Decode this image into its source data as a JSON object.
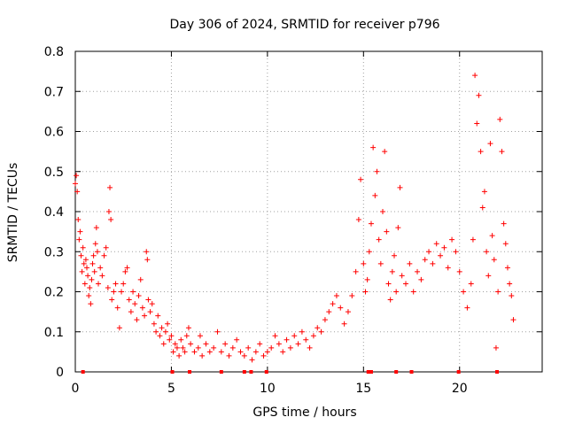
{
  "chart_data": {
    "type": "scatter",
    "title": "Day 306 of 2024, SRMTID for receiver p796",
    "xlabel": "GPS time / hours",
    "ylabel": "SRMTID / TECUs",
    "xlim": [
      0,
      24.3
    ],
    "ylim": [
      0,
      0.8
    ],
    "xticks": [
      "0",
      "5",
      "10",
      "15",
      "20"
    ],
    "xtick_values": [
      0,
      5,
      10,
      15,
      20
    ],
    "yticks": [
      "0",
      "0.1",
      "0.2",
      "0.3",
      "0.4",
      "0.5",
      "0.6",
      "0.7",
      "0.8"
    ],
    "ytick_values": [
      0,
      0.1,
      0.2,
      0.3,
      0.4,
      0.5,
      0.6,
      0.7,
      0.8
    ],
    "grid": true,
    "marker": "+",
    "color": "#ff0000",
    "series": [
      {
        "name": "SRMTID",
        "points": [
          [
            0.0,
            0.47
          ],
          [
            0.05,
            0.49
          ],
          [
            0.1,
            0.45
          ],
          [
            0.15,
            0.38
          ],
          [
            0.2,
            0.33
          ],
          [
            0.25,
            0.35
          ],
          [
            0.3,
            0.29
          ],
          [
            0.35,
            0.25
          ],
          [
            0.4,
            0.31
          ],
          [
            0.45,
            0.27
          ],
          [
            0.5,
            0.22
          ],
          [
            0.55,
            0.28
          ],
          [
            0.6,
            0.26
          ],
          [
            0.65,
            0.24
          ],
          [
            0.7,
            0.19
          ],
          [
            0.75,
            0.21
          ],
          [
            0.8,
            0.17
          ],
          [
            0.85,
            0.23
          ],
          [
            0.9,
            0.27
          ],
          [
            0.95,
            0.29
          ],
          [
            1.0,
            0.25
          ],
          [
            1.05,
            0.32
          ],
          [
            1.1,
            0.36
          ],
          [
            1.15,
            0.3
          ],
          [
            1.2,
            0.22
          ],
          [
            1.3,
            0.26
          ],
          [
            1.4,
            0.24
          ],
          [
            1.5,
            0.29
          ],
          [
            1.6,
            0.31
          ],
          [
            1.7,
            0.21
          ],
          [
            1.75,
            0.4
          ],
          [
            1.8,
            0.46
          ],
          [
            1.85,
            0.38
          ],
          [
            1.9,
            0.18
          ],
          [
            2.0,
            0.2
          ],
          [
            2.1,
            0.22
          ],
          [
            2.2,
            0.16
          ],
          [
            2.3,
            0.11
          ],
          [
            2.4,
            0.2
          ],
          [
            2.5,
            0.22
          ],
          [
            2.6,
            0.25
          ],
          [
            2.7,
            0.26
          ],
          [
            2.8,
            0.18
          ],
          [
            2.9,
            0.15
          ],
          [
            3.0,
            0.2
          ],
          [
            3.1,
            0.17
          ],
          [
            3.2,
            0.13
          ],
          [
            3.3,
            0.19
          ],
          [
            3.4,
            0.23
          ],
          [
            3.5,
            0.16
          ],
          [
            3.6,
            0.14
          ],
          [
            3.7,
            0.3
          ],
          [
            3.75,
            0.28
          ],
          [
            3.8,
            0.18
          ],
          [
            3.9,
            0.15
          ],
          [
            4.0,
            0.17
          ],
          [
            4.1,
            0.12
          ],
          [
            4.2,
            0.1
          ],
          [
            4.3,
            0.14
          ],
          [
            4.4,
            0.09
          ],
          [
            4.5,
            0.11
          ],
          [
            4.6,
            0.07
          ],
          [
            4.7,
            0.1
          ],
          [
            4.8,
            0.12
          ],
          [
            4.9,
            0.08
          ],
          [
            5.0,
            0.09
          ],
          [
            5.1,
            0.05
          ],
          [
            5.2,
            0.07
          ],
          [
            5.3,
            0.06
          ],
          [
            5.4,
            0.04
          ],
          [
            5.5,
            0.08
          ],
          [
            5.6,
            0.06
          ],
          [
            5.7,
            0.05
          ],
          [
            5.8,
            0.09
          ],
          [
            5.9,
            0.11
          ],
          [
            6.0,
            0.07
          ],
          [
            6.2,
            0.05
          ],
          [
            6.4,
            0.06
          ],
          [
            6.5,
            0.09
          ],
          [
            6.6,
            0.04
          ],
          [
            6.8,
            0.07
          ],
          [
            7.0,
            0.05
          ],
          [
            7.2,
            0.06
          ],
          [
            7.4,
            0.1
          ],
          [
            7.6,
            0.05
          ],
          [
            7.8,
            0.07
          ],
          [
            8.0,
            0.04
          ],
          [
            8.2,
            0.06
          ],
          [
            8.4,
            0.08
          ],
          [
            8.6,
            0.05
          ],
          [
            8.8,
            0.04
          ],
          [
            9.0,
            0.06
          ],
          [
            9.2,
            0.03
          ],
          [
            9.4,
            0.05
          ],
          [
            9.6,
            0.07
          ],
          [
            9.8,
            0.04
          ],
          [
            10.0,
            0.05
          ],
          [
            10.2,
            0.06
          ],
          [
            10.4,
            0.09
          ],
          [
            10.6,
            0.07
          ],
          [
            10.8,
            0.05
          ],
          [
            11.0,
            0.08
          ],
          [
            11.2,
            0.06
          ],
          [
            11.4,
            0.09
          ],
          [
            11.6,
            0.07
          ],
          [
            11.8,
            0.1
          ],
          [
            12.0,
            0.08
          ],
          [
            12.2,
            0.06
          ],
          [
            12.4,
            0.09
          ],
          [
            12.6,
            0.11
          ],
          [
            12.8,
            0.1
          ],
          [
            13.0,
            0.13
          ],
          [
            13.2,
            0.15
          ],
          [
            13.4,
            0.17
          ],
          [
            13.6,
            0.19
          ],
          [
            13.8,
            0.16
          ],
          [
            14.0,
            0.12
          ],
          [
            14.2,
            0.15
          ],
          [
            14.4,
            0.19
          ],
          [
            14.6,
            0.25
          ],
          [
            14.75,
            0.38
          ],
          [
            14.85,
            0.48
          ],
          [
            15.0,
            0.27
          ],
          [
            15.1,
            0.2
          ],
          [
            15.2,
            0.23
          ],
          [
            15.3,
            0.3
          ],
          [
            15.4,
            0.37
          ],
          [
            15.5,
            0.56
          ],
          [
            15.6,
            0.44
          ],
          [
            15.7,
            0.5
          ],
          [
            15.8,
            0.33
          ],
          [
            15.9,
            0.27
          ],
          [
            16.0,
            0.4
          ],
          [
            16.1,
            0.55
          ],
          [
            16.2,
            0.35
          ],
          [
            16.3,
            0.22
          ],
          [
            16.4,
            0.18
          ],
          [
            16.5,
            0.25
          ],
          [
            16.6,
            0.29
          ],
          [
            16.7,
            0.2
          ],
          [
            16.8,
            0.36
          ],
          [
            16.9,
            0.46
          ],
          [
            17.0,
            0.24
          ],
          [
            17.2,
            0.22
          ],
          [
            17.4,
            0.27
          ],
          [
            17.6,
            0.2
          ],
          [
            17.8,
            0.25
          ],
          [
            18.0,
            0.23
          ],
          [
            18.2,
            0.28
          ],
          [
            18.4,
            0.3
          ],
          [
            18.6,
            0.27
          ],
          [
            18.8,
            0.32
          ],
          [
            19.0,
            0.29
          ],
          [
            19.2,
            0.31
          ],
          [
            19.4,
            0.26
          ],
          [
            19.6,
            0.33
          ],
          [
            19.8,
            0.3
          ],
          [
            20.0,
            0.25
          ],
          [
            20.2,
            0.2
          ],
          [
            20.4,
            0.16
          ],
          [
            20.6,
            0.22
          ],
          [
            20.7,
            0.33
          ],
          [
            20.8,
            0.74
          ],
          [
            20.9,
            0.62
          ],
          [
            21.0,
            0.69
          ],
          [
            21.1,
            0.55
          ],
          [
            21.2,
            0.41
          ],
          [
            21.3,
            0.45
          ],
          [
            21.4,
            0.3
          ],
          [
            21.5,
            0.24
          ],
          [
            21.6,
            0.57
          ],
          [
            21.7,
            0.34
          ],
          [
            21.8,
            0.28
          ],
          [
            21.9,
            0.06
          ],
          [
            22.0,
            0.2
          ],
          [
            22.1,
            0.63
          ],
          [
            22.2,
            0.55
          ],
          [
            22.3,
            0.37
          ],
          [
            22.4,
            0.32
          ],
          [
            22.5,
            0.26
          ],
          [
            22.6,
            0.22
          ],
          [
            22.7,
            0.19
          ],
          [
            22.8,
            0.13
          ]
        ]
      }
    ],
    "gaps": [
      0.4,
      5.05,
      5.95,
      7.6,
      8.8,
      9.15,
      9.95,
      15.25,
      15.4,
      16.7,
      17.5,
      19.95,
      21.95
    ]
  }
}
